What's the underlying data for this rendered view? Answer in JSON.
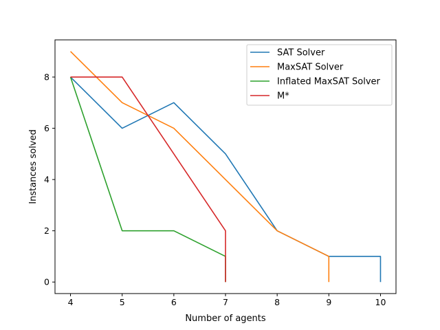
{
  "chart_data": {
    "type": "line",
    "title": "",
    "xlabel": "Number of agents",
    "ylabel": "Instances solved",
    "xlim": [
      3.7,
      10.3
    ],
    "ylim": [
      -0.45,
      9.45
    ],
    "xticks": [
      4,
      5,
      6,
      7,
      8,
      9,
      10
    ],
    "yticks": [
      0,
      2,
      4,
      6,
      8
    ],
    "grid": false,
    "legend_position": "top-right",
    "series": [
      {
        "name": "SAT Solver",
        "color": "#1f77b4",
        "points": [
          [
            4,
            8
          ],
          [
            5,
            6
          ],
          [
            6,
            7
          ],
          [
            7,
            5
          ],
          [
            8,
            2
          ],
          [
            9,
            1
          ],
          [
            10,
            1
          ],
          [
            10,
            0
          ]
        ]
      },
      {
        "name": "MaxSAT Solver",
        "color": "#ff7f0e",
        "points": [
          [
            4,
            9
          ],
          [
            5,
            7
          ],
          [
            6,
            6
          ],
          [
            7,
            4
          ],
          [
            8,
            2
          ],
          [
            9,
            1
          ],
          [
            9,
            0
          ]
        ]
      },
      {
        "name": "Inflated MaxSAT Solver",
        "color": "#2ca02c",
        "points": [
          [
            4,
            8
          ],
          [
            5,
            2
          ],
          [
            6,
            2
          ],
          [
            7,
            1
          ],
          [
            7,
            0
          ]
        ]
      },
      {
        "name": "M*",
        "color": "#d62728",
        "points": [
          [
            4,
            8
          ],
          [
            5,
            8
          ],
          [
            6,
            5
          ],
          [
            7,
            2
          ],
          [
            7,
            0
          ]
        ]
      }
    ]
  }
}
